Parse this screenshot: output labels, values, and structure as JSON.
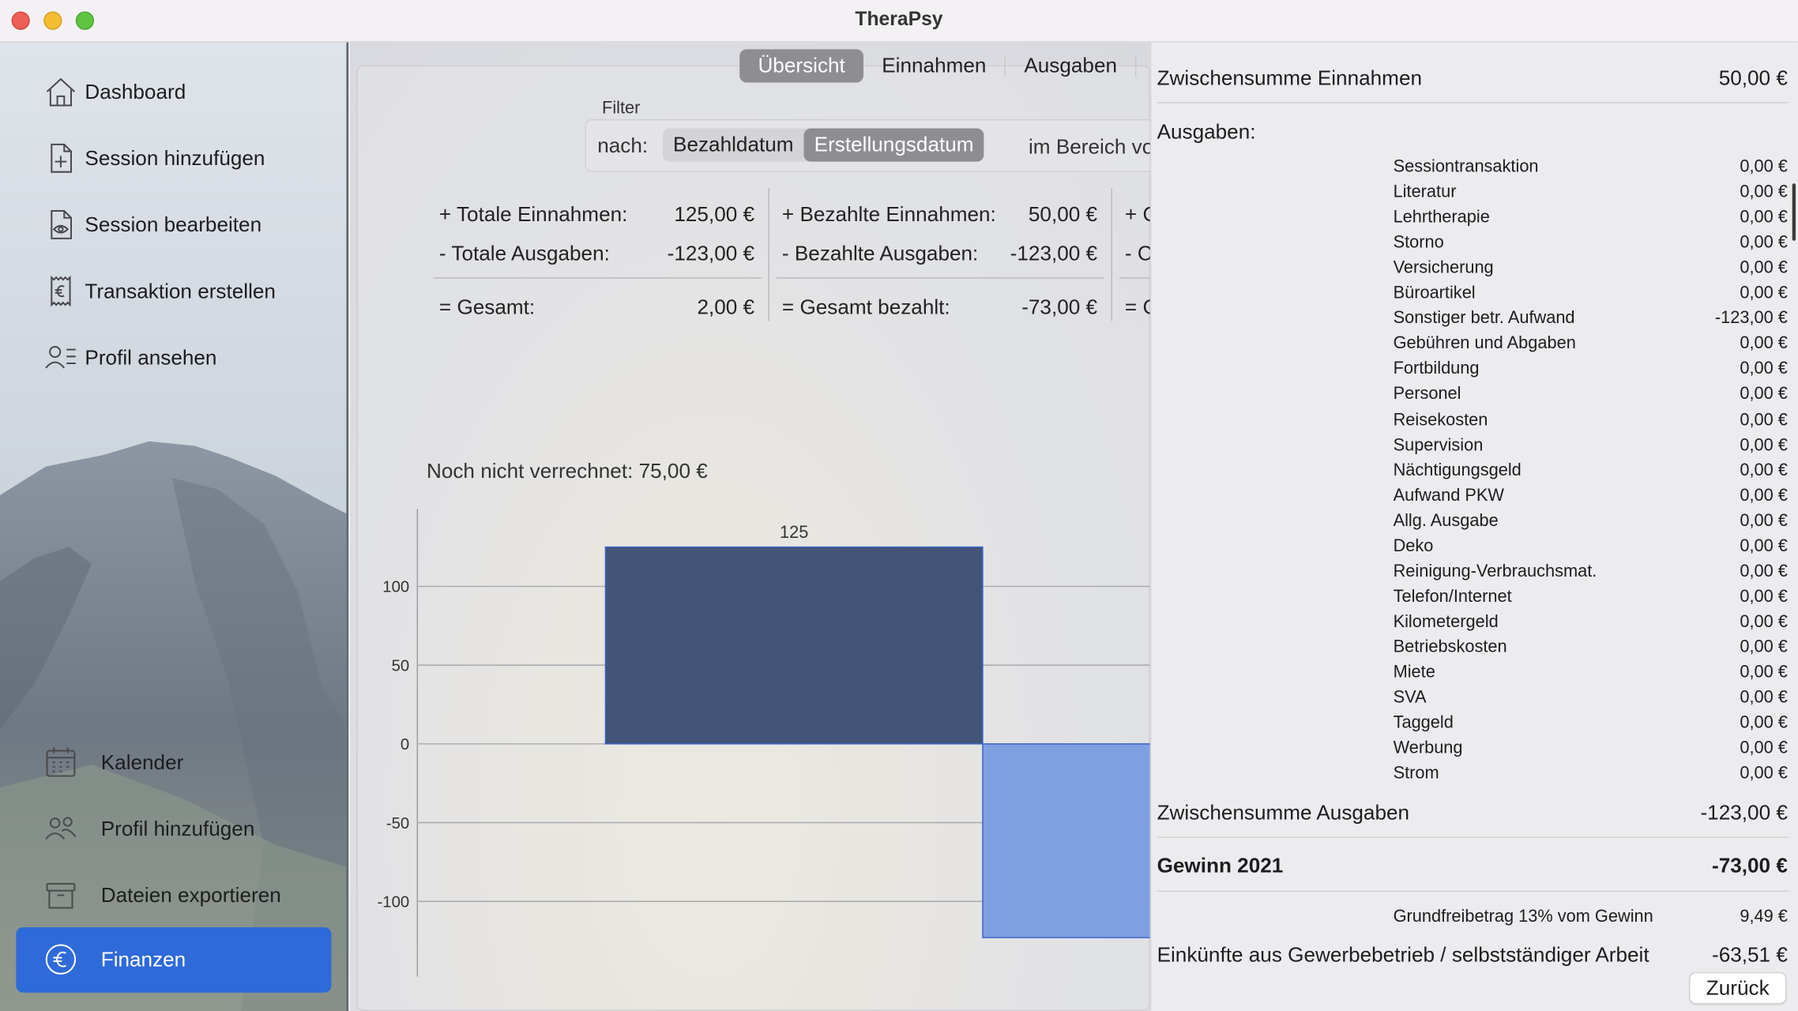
{
  "window": {
    "title": "TheraPsy"
  },
  "sidebar": {
    "items": [
      {
        "label": "Dashboard",
        "icon": "house-icon"
      },
      {
        "label": "Session hinzufügen",
        "icon": "document-plus-icon"
      },
      {
        "label": "Session bearbeiten",
        "icon": "document-eye-icon"
      },
      {
        "label": "Transaktion erstellen",
        "icon": "euro-receipt-icon"
      },
      {
        "label": "Profil ansehen",
        "icon": "person-list-icon"
      }
    ],
    "bottom_items": [
      {
        "label": "Kalender",
        "icon": "calendar-icon"
      },
      {
        "label": "Profil hinzufügen",
        "icon": "people-icon"
      },
      {
        "label": "Dateien exportieren",
        "icon": "archive-box-icon"
      },
      {
        "label": "Finanzen",
        "icon": "euro-circle-icon",
        "active": true
      }
    ],
    "accent": "#2f6ad9"
  },
  "tabs": [
    {
      "label": "Übersicht",
      "active": true
    },
    {
      "label": "Einnahmen"
    },
    {
      "label": "Ausgaben"
    }
  ],
  "filter": {
    "title": "Filter",
    "by_label": "nach:",
    "options": [
      {
        "label": "Bezahldatum"
      },
      {
        "label": "Erstellungsdatum",
        "active": true
      }
    ],
    "range_label": "im Bereich vo"
  },
  "summary": {
    "col1": {
      "income_label": "+ Totale Einnahmen:",
      "income_value": "125,00 €",
      "expense_label": "- Totale Ausgaben:",
      "expense_value": "-123,00 €",
      "total_label": "= Gesamt:",
      "total_value": "2,00 €"
    },
    "col2": {
      "income_label": "+ Bezahlte Einnahmen:",
      "income_value": "50,00 €",
      "expense_label": "- Bezahlte Ausgaben:",
      "expense_value": "-123,00 €",
      "total_label": "= Gesamt bezahlt:",
      "total_value": "-73,00 €"
    },
    "col3": {
      "income_label": "+ C",
      "expense_label": "- C",
      "total_label": "= C"
    }
  },
  "pending": "Noch nicht verrechnet: 75,00 €",
  "chart_data": {
    "type": "bar",
    "categories": [
      "",
      ""
    ],
    "values": [
      125,
      -123
    ],
    "data_labels": [
      "125",
      ""
    ],
    "colors": [
      "#435478",
      "#7fa0e0"
    ],
    "yticks": [
      "100",
      "50",
      "0",
      "-50",
      "-100"
    ],
    "ylim": [
      -150,
      150
    ],
    "grid": true,
    "title": "",
    "xlabel": "",
    "ylabel": ""
  },
  "panel": {
    "income_subtotal_label": "Zwischensumme Einnahmen",
    "income_subtotal_value": "50,00 €",
    "expenses_heading": "Ausgaben:",
    "expenses": [
      {
        "label": "Sessiontransaktion",
        "value": "0,00 €"
      },
      {
        "label": "Literatur",
        "value": "0,00 €"
      },
      {
        "label": "Lehrtherapie",
        "value": "0,00 €"
      },
      {
        "label": "Storno",
        "value": "0,00 €"
      },
      {
        "label": "Versicherung",
        "value": "0,00 €"
      },
      {
        "label": "Büroartikel",
        "value": "0,00 €"
      },
      {
        "label": "Sonstiger betr. Aufwand",
        "value": "-123,00 €"
      },
      {
        "label": "Gebühren und Abgaben",
        "value": "0,00 €"
      },
      {
        "label": "Fortbildung",
        "value": "0,00 €"
      },
      {
        "label": "Personel",
        "value": "0,00 €"
      },
      {
        "label": "Reisekosten",
        "value": "0,00 €"
      },
      {
        "label": "Supervision",
        "value": "0,00 €"
      },
      {
        "label": "Nächtigungsgeld",
        "value": "0,00 €"
      },
      {
        "label": "Aufwand PKW",
        "value": "0,00 €"
      },
      {
        "label": "Allg. Ausgabe",
        "value": "0,00 €"
      },
      {
        "label": "Deko",
        "value": "0,00 €"
      },
      {
        "label": "Reinigung-Verbrauchsmat.",
        "value": "0,00 €"
      },
      {
        "label": "Telefon/Internet",
        "value": "0,00 €"
      },
      {
        "label": "Kilometergeld",
        "value": "0,00 €"
      },
      {
        "label": "Betriebskosten",
        "value": "0,00 €"
      },
      {
        "label": "Miete",
        "value": "0,00 €"
      },
      {
        "label": "SVA",
        "value": "0,00 €"
      },
      {
        "label": "Taggeld",
        "value": "0,00 €"
      },
      {
        "label": "Werbung",
        "value": "0,00 €"
      },
      {
        "label": "Strom",
        "value": "0,00 €"
      }
    ],
    "expense_subtotal_label": "Zwischensumme Ausgaben",
    "expense_subtotal_value": "-123,00 €",
    "profit_label": "Gewinn 2021",
    "profit_value": "-73,00 €",
    "allowance_label": "Grundfreibetrag 13% vom Gewinn",
    "allowance_value": "9,49 €",
    "earnings_label": "Einkünfte aus Gewerbebetrieb / selbstständiger Arbeit",
    "earnings_value": "-63,51 €",
    "back_label": "Zurück"
  }
}
